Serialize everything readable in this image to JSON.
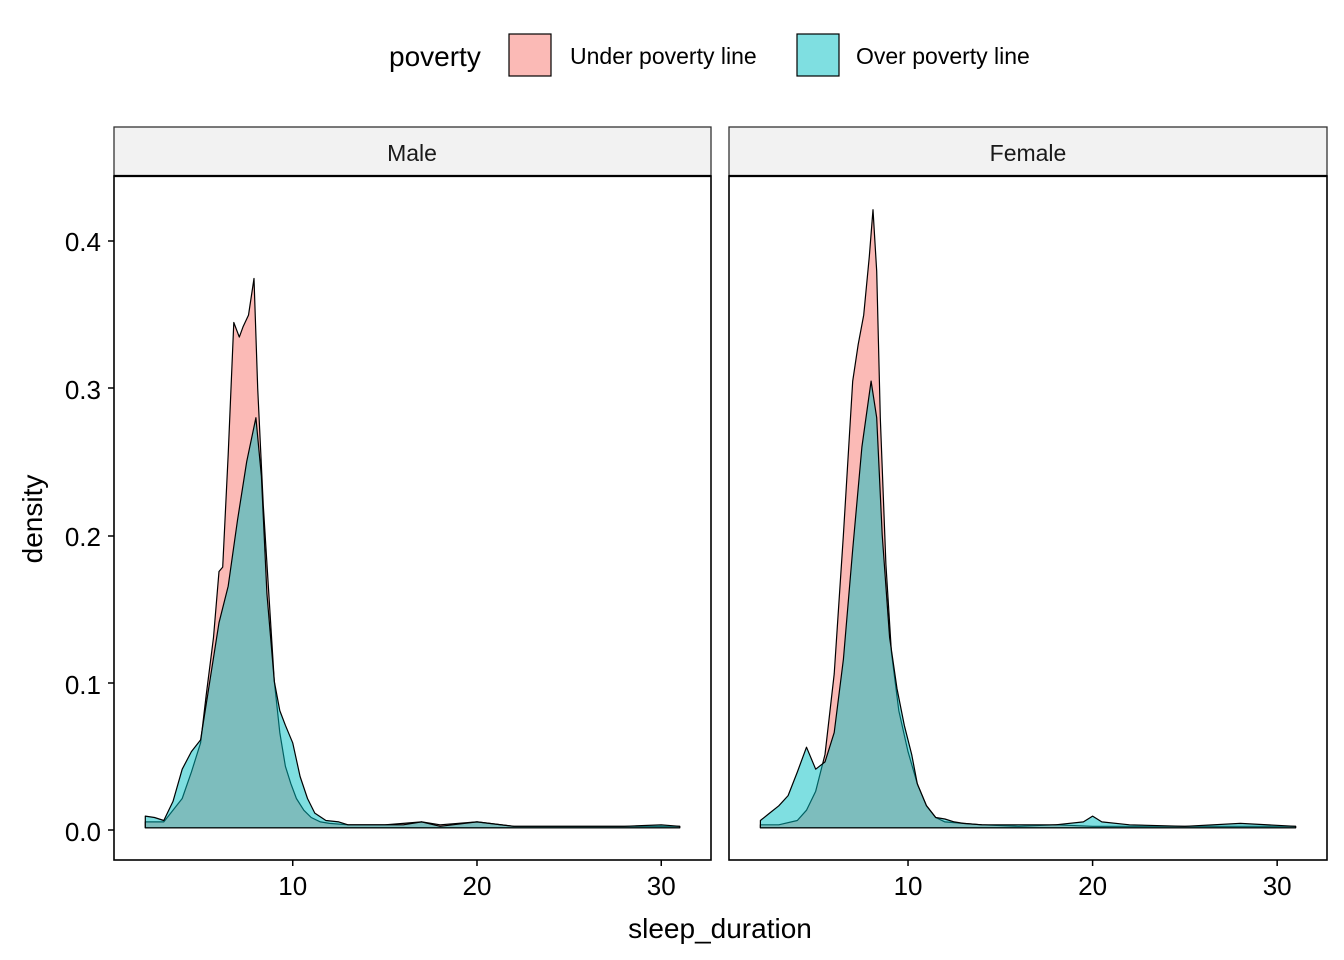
{
  "legend": {
    "title": "poverty",
    "items": [
      {
        "label": "Under poverty line",
        "color": "#F8766D"
      },
      {
        "label": "Over poverty line",
        "color": "#00BFC4"
      }
    ]
  },
  "chart_data": {
    "type": "area",
    "subtype": "density",
    "xlabel": "sleep_duration",
    "ylabel": "density",
    "xlim": [
      0.3,
      32.7
    ],
    "ylim": [
      -0.022,
      0.445
    ],
    "xticks": [
      10,
      20,
      30
    ],
    "yticks": [
      0.0,
      0.1,
      0.2,
      0.3,
      0.4
    ],
    "ytick_labels": [
      "0.0",
      "0.1",
      "0.2",
      "0.3",
      "0.4"
    ],
    "fill_alpha": 0.5,
    "colors": {
      "Under poverty line": "#F8766D",
      "Over poverty line": "#00BFC4"
    },
    "panels": [
      {
        "label": "Male",
        "series": [
          {
            "name": "Under poverty line",
            "x": [
              2,
              3,
              4,
              4.5,
              5,
              5.3,
              5.7,
              6,
              6.2,
              6.5,
              6.8,
              7.1,
              7.3,
              7.6,
              7.9,
              8.1,
              8.4,
              8.7,
              9,
              9.3,
              9.6,
              9.9,
              10.2,
              10.6,
              11,
              11.5,
              12,
              13,
              14,
              15,
              16,
              17,
              18,
              20,
              22,
              25,
              28,
              31
            ],
            "y": [
              0.004,
              0.004,
              0.02,
              0.038,
              0.058,
              0.09,
              0.13,
              0.175,
              0.178,
              0.255,
              0.345,
              0.335,
              0.342,
              0.35,
              0.375,
              0.3,
              0.22,
              0.16,
              0.1,
              0.065,
              0.042,
              0.03,
              0.02,
              0.012,
              0.007,
              0.004,
              0.003,
              0.002,
              0.002,
              0.002,
              0.003,
              0.004,
              0.002,
              0.004,
              0.001,
              0.001,
              0.001,
              0.001
            ]
          },
          {
            "name": "Over poverty line",
            "x": [
              2,
              2.5,
              3,
              3.5,
              4,
              4.5,
              5,
              5.5,
              6,
              6.5,
              7,
              7.5,
              8,
              8.3,
              8.6,
              9,
              9.3,
              9.6,
              10,
              10.4,
              10.8,
              11.2,
              11.8,
              12.5,
              13,
              14,
              16,
              17,
              18,
              20,
              22,
              25,
              28,
              30,
              31
            ],
            "y": [
              0.008,
              0.007,
              0.005,
              0.018,
              0.04,
              0.052,
              0.06,
              0.1,
              0.14,
              0.165,
              0.21,
              0.25,
              0.28,
              0.24,
              0.16,
              0.1,
              0.08,
              0.07,
              0.058,
              0.035,
              0.02,
              0.01,
              0.005,
              0.004,
              0.002,
              0.002,
              0.002,
              0.004,
              0.001,
              0.004,
              0.001,
              0.001,
              0.001,
              0.002,
              0.001
            ]
          }
        ]
      },
      {
        "label": "Female",
        "series": [
          {
            "name": "Under poverty line",
            "x": [
              2,
              3,
              4,
              4.5,
              5,
              5.5,
              6,
              6.5,
              7,
              7.3,
              7.6,
              7.9,
              8.1,
              8.3,
              8.5,
              8.8,
              9.1,
              9.5,
              10,
              10.5,
              11,
              11.5,
              12,
              13,
              14,
              16,
              18,
              20,
              22,
              25,
              28,
              31
            ],
            "y": [
              0.002,
              0.002,
              0.005,
              0.012,
              0.025,
              0.05,
              0.105,
              0.2,
              0.305,
              0.33,
              0.35,
              0.39,
              0.422,
              0.38,
              0.28,
              0.18,
              0.12,
              0.08,
              0.052,
              0.03,
              0.015,
              0.007,
              0.004,
              0.003,
              0.002,
              0.001,
              0.002,
              0.001,
              0.001,
              0.001,
              0.001,
              0.001
            ]
          },
          {
            "name": "Over poverty line",
            "x": [
              2,
              2.5,
              3,
              3.5,
              4,
              4.5,
              5,
              5.5,
              6,
              6.5,
              7,
              7.5,
              8,
              8.3,
              8.6,
              9,
              9.4,
              9.8,
              10.2,
              10.5,
              11,
              11.5,
              12,
              12.5,
              13,
              14,
              16,
              18,
              19.5,
              20,
              20.5,
              22,
              25,
              28,
              31
            ],
            "y": [
              0.005,
              0.01,
              0.015,
              0.022,
              0.038,
              0.055,
              0.04,
              0.045,
              0.065,
              0.115,
              0.19,
              0.26,
              0.305,
              0.28,
              0.2,
              0.13,
              0.095,
              0.07,
              0.05,
              0.03,
              0.015,
              0.007,
              0.006,
              0.004,
              0.003,
              0.002,
              0.002,
              0.002,
              0.004,
              0.008,
              0.004,
              0.002,
              0.001,
              0.003,
              0.001
            ]
          }
        ]
      }
    ]
  }
}
